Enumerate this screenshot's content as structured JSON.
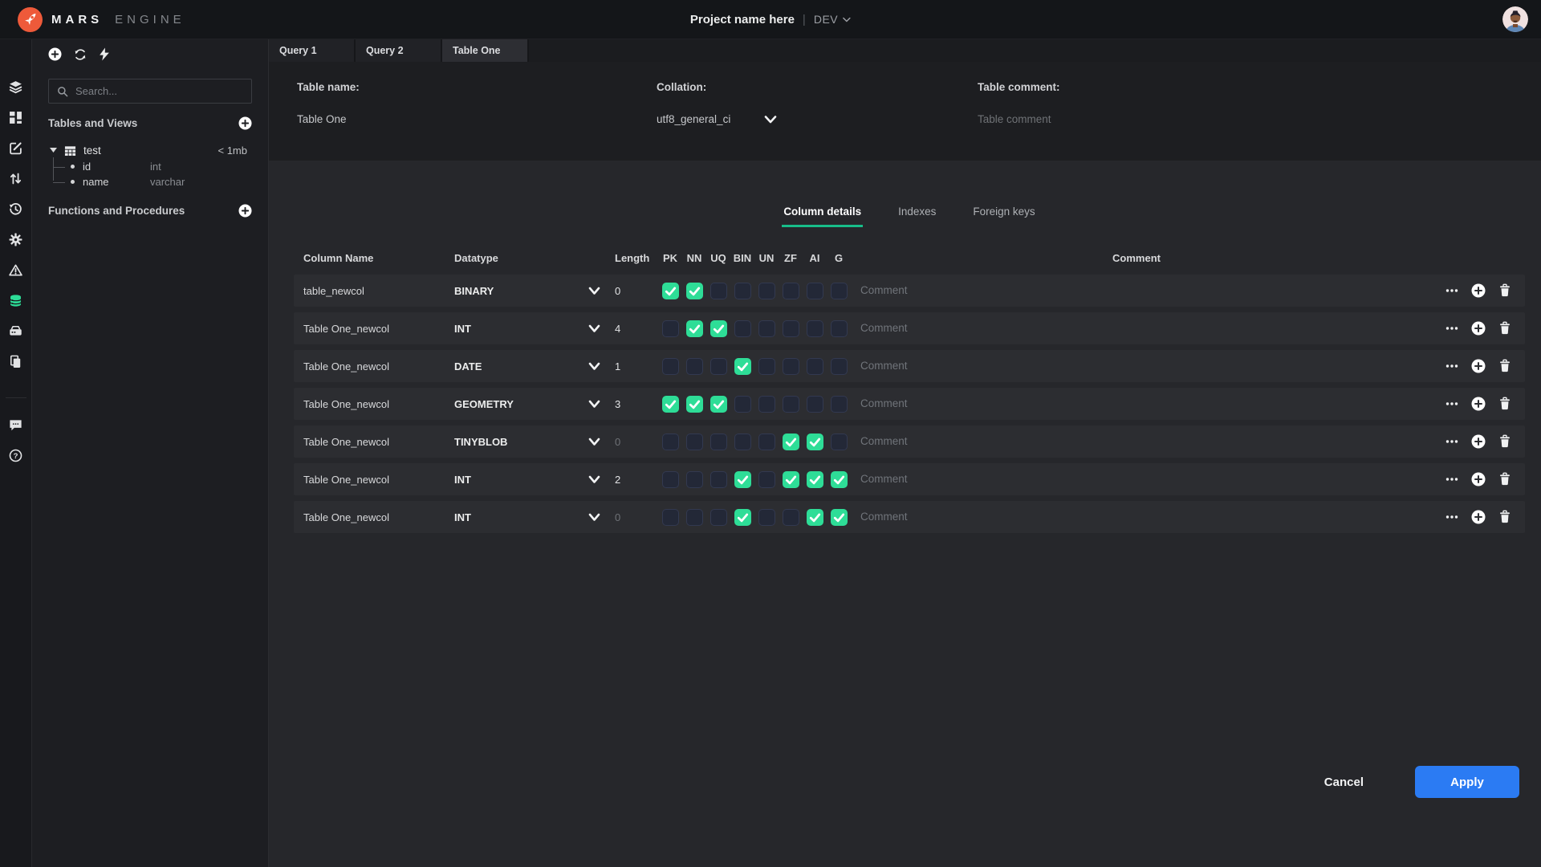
{
  "topbar": {
    "brand": {
      "primary": "MARS",
      "secondary": "ENGINE"
    },
    "project_name": "Project name here",
    "divider": "|",
    "environment": "DEV"
  },
  "rail": {
    "items": [
      {
        "name": "layers",
        "active": false
      },
      {
        "name": "dashboard",
        "active": false
      },
      {
        "name": "edit",
        "active": false
      },
      {
        "name": "transfer",
        "active": false
      },
      {
        "name": "history",
        "active": false
      },
      {
        "name": "settings",
        "active": false
      },
      {
        "name": "warning",
        "active": false
      },
      {
        "name": "database",
        "active": true
      },
      {
        "name": "server",
        "active": false
      },
      {
        "name": "clipboard",
        "active": false
      },
      {
        "name": "chat",
        "active": false
      },
      {
        "name": "help",
        "active": false
      }
    ]
  },
  "sidebar": {
    "search_placeholder": "Search...",
    "sections": [
      {
        "title": "Tables and Views"
      },
      {
        "title": "Functions and Procedures"
      }
    ],
    "tree": {
      "table": "test",
      "size": "< 1mb",
      "columns": [
        {
          "name": "id",
          "type": "int"
        },
        {
          "name": "name",
          "type": "varchar"
        }
      ]
    }
  },
  "main": {
    "tabs": [
      {
        "label": "Query 1",
        "active": false
      },
      {
        "label": "Query 2",
        "active": false
      },
      {
        "label": "Table One",
        "active": true
      }
    ],
    "form": {
      "table_name_label": "Table name:",
      "table_name_value": "Table One",
      "collation_label": "Collation:",
      "collation_value": "utf8_general_ci",
      "comment_label": "Table comment:",
      "comment_placeholder": "Table comment"
    },
    "detail_tabs": [
      {
        "label": "Column details",
        "active": true
      },
      {
        "label": "Indexes",
        "active": false
      },
      {
        "label": "Foreign keys",
        "active": false
      }
    ],
    "table": {
      "headers": {
        "name": "Column Name",
        "datatype": "Datatype",
        "length": "Length",
        "comment": "Comment"
      },
      "flag_headers": [
        "PK",
        "NN",
        "UQ",
        "BIN",
        "UN",
        "ZF",
        "AI",
        "G"
      ],
      "comment_placeholder": "Comment",
      "rows": [
        {
          "name": "table_newcol",
          "datatype": "BINARY",
          "length": "0",
          "length_dim": false,
          "flags": [
            true,
            true,
            false,
            false,
            false,
            false,
            false,
            false
          ]
        },
        {
          "name": "Table One_newcol",
          "datatype": "INT",
          "length": "4",
          "length_dim": false,
          "flags": [
            false,
            true,
            true,
            false,
            false,
            false,
            false,
            false
          ]
        },
        {
          "name": "Table One_newcol",
          "datatype": "DATE",
          "length": "1",
          "length_dim": false,
          "flags": [
            false,
            false,
            false,
            true,
            false,
            false,
            false,
            false
          ]
        },
        {
          "name": "Table One_newcol",
          "datatype": "GEOMETRY",
          "length": "3",
          "length_dim": false,
          "flags": [
            true,
            true,
            true,
            false,
            false,
            false,
            false,
            false
          ]
        },
        {
          "name": "Table One_newcol",
          "datatype": "TINYBLOB",
          "length": "0",
          "length_dim": true,
          "flags": [
            false,
            false,
            false,
            false,
            false,
            true,
            true,
            false
          ]
        },
        {
          "name": "Table One_newcol",
          "datatype": "INT",
          "length": "2",
          "length_dim": false,
          "flags": [
            false,
            false,
            false,
            true,
            false,
            true,
            true,
            true
          ]
        },
        {
          "name": "Table One_newcol",
          "datatype": "INT",
          "length": "0",
          "length_dim": true,
          "flags": [
            false,
            false,
            false,
            true,
            false,
            false,
            true,
            true
          ]
        }
      ]
    },
    "footer": {
      "cancel_label": "Cancel",
      "apply_label": "Apply"
    }
  },
  "colors": {
    "accent_green": "#2edd97",
    "accent_green_underline": "#17bd89",
    "accent_blue": "#2b7bf3",
    "brand_orange": "#ee5a3a"
  }
}
